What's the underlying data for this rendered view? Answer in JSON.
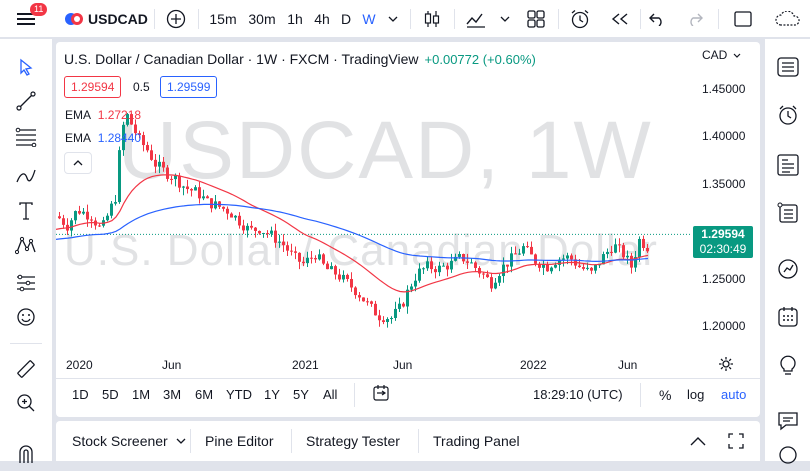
{
  "topbar": {
    "notification_count": "11",
    "symbol": "USDCAD",
    "intervals": [
      "15m",
      "30m",
      "1h",
      "4h",
      "D",
      "W"
    ],
    "active_interval": "W"
  },
  "legend": {
    "title": "U.S. Dollar / Canadian Dollar · 1W · FXCM · TradingView",
    "change": "+0.00772 (+0.60%)",
    "sell_price": "1.29594",
    "spread": "0.5",
    "buy_price": "1.29599",
    "ema1_label": "EMA",
    "ema1_value": "1.27218",
    "ema2_label": "EMA",
    "ema2_value": "1.28440",
    "ema1_color": "#f23645",
    "ema2_color": "#2962ff"
  },
  "watermark": {
    "symbol": "USDCAD, 1W",
    "name": "U.S. Dollar / Canadian Dollar"
  },
  "price_axis": {
    "currency": "CAD",
    "ticks": [
      "1.45000",
      "1.40000",
      "1.35000",
      "1.30000",
      "1.25000",
      "1.20000"
    ],
    "last_price": "1.29594",
    "countdown": "02:30:49"
  },
  "time_axis": {
    "ticks": [
      "2020",
      "Jun",
      "2021",
      "Jun",
      "2022",
      "Jun"
    ]
  },
  "bottom_toolbar": {
    "ranges": [
      "1D",
      "5D",
      "1M",
      "3M",
      "6M",
      "YTD",
      "1Y",
      "5Y",
      "All"
    ],
    "clock": "18:29:10 (UTC)",
    "percent_label": "%",
    "log_label": "log",
    "auto_label": "auto"
  },
  "bottom_panel": {
    "tabs": [
      "Stock Screener",
      "Pine Editor",
      "Strategy Tester",
      "Trading Panel"
    ]
  },
  "colors": {
    "up": "#089981",
    "down": "#f23645",
    "accent": "#2962ff"
  }
}
